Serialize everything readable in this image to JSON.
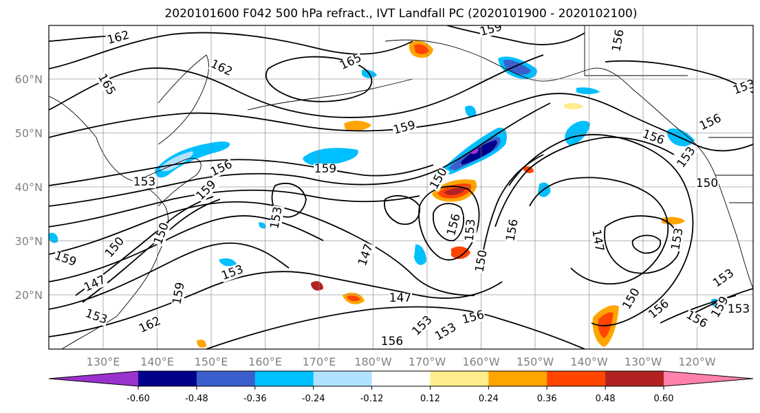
{
  "title": "2020101600 F042 500 hPa refract., IVT Landfall PC (2020101900 - 2020102100)",
  "map": {
    "lon_ticks": [
      "130°E",
      "140°E",
      "150°E",
      "160°E",
      "170°E",
      "180°W",
      "170°W",
      "160°W",
      "150°W",
      "140°W",
      "130°W",
      "120°W"
    ],
    "lat_ticks": [
      "60°N",
      "50°N",
      "40°N",
      "30°N",
      "20°N"
    ],
    "contour_labels": [
      {
        "text": "162"
      },
      {
        "text": "165"
      },
      {
        "text": "162"
      },
      {
        "text": "165"
      },
      {
        "text": "159"
      },
      {
        "text": "159"
      },
      {
        "text": "156"
      },
      {
        "text": "159"
      },
      {
        "text": "156"
      },
      {
        "text": "153"
      },
      {
        "text": "159"
      },
      {
        "text": "153"
      },
      {
        "text": "150"
      },
      {
        "text": "156"
      },
      {
        "text": "153"
      },
      {
        "text": "147"
      },
      {
        "text": "153"
      },
      {
        "text": "147"
      },
      {
        "text": "150"
      },
      {
        "text": "156"
      },
      {
        "text": "147"
      },
      {
        "text": "153"
      },
      {
        "text": "159"
      },
      {
        "text": "156"
      },
      {
        "text": "153"
      },
      {
        "text": "150"
      },
      {
        "text": "153"
      },
      {
        "text": "147"
      },
      {
        "text": "153"
      },
      {
        "text": "150"
      },
      {
        "text": "156"
      },
      {
        "text": "156"
      },
      {
        "text": "153"
      },
      {
        "text": "153"
      },
      {
        "text": "156"
      },
      {
        "text": "159"
      },
      {
        "text": "162"
      },
      {
        "text": "153"
      },
      {
        "text": "156"
      },
      {
        "text": "150"
      },
      {
        "text": "153"
      },
      {
        "text": "159"
      },
      {
        "text": "156"
      },
      {
        "text": "150"
      }
    ]
  },
  "colorbar": {
    "colors": [
      "#9a32cd",
      "#00008b",
      "#3a5fcd",
      "#00bfff",
      "#b0e2ff",
      "#ffffff",
      "#ffec8b",
      "#ffa500",
      "#ff4500",
      "#b22222",
      "#ff82ab"
    ],
    "tick_labels": [
      "-0.60",
      "-0.48",
      "-0.36",
      "-0.24",
      "-0.12",
      "0.12",
      "0.24",
      "0.36",
      "0.48",
      "0.60"
    ]
  }
}
